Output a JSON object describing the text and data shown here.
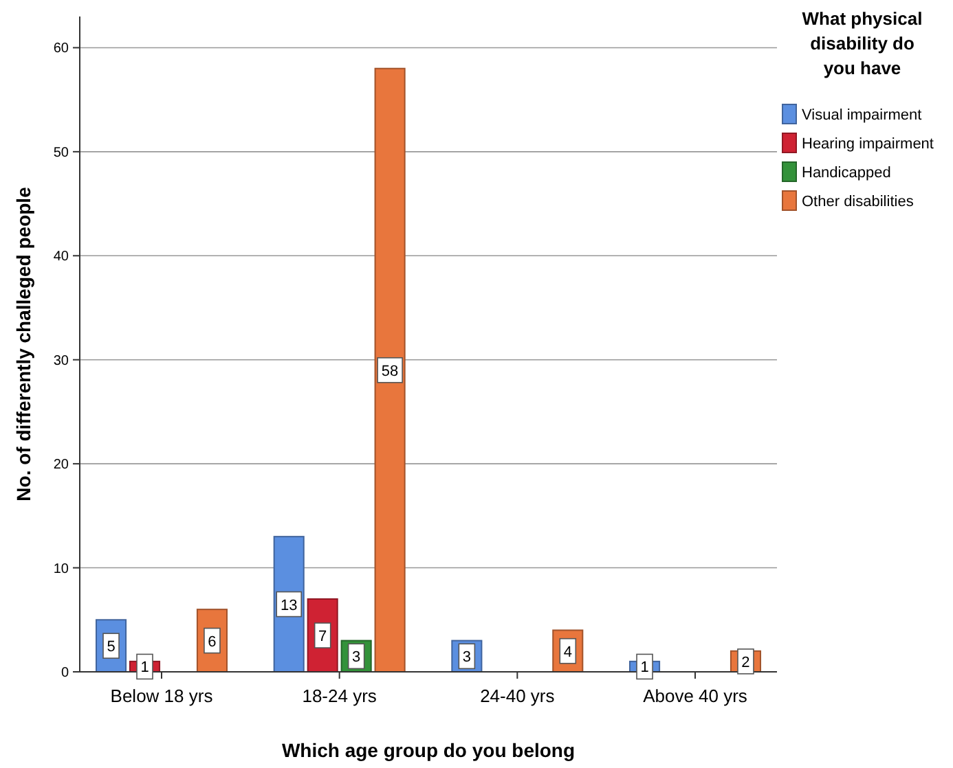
{
  "chart_data": {
    "type": "bar",
    "xlabel": "Which age group do you belong",
    "ylabel": "No. of differently challeged people",
    "legend_title": "What physical disability do you have",
    "categories": [
      "Below 18 yrs",
      "18-24 yrs",
      "24-40 yrs",
      "Above 40 yrs"
    ],
    "series": [
      {
        "name": "Visual impairment",
        "color": "#5b8fe0",
        "values": [
          5,
          13,
          3,
          1
        ]
      },
      {
        "name": "Hearing impairment",
        "color": "#cf2233",
        "values": [
          1,
          7,
          null,
          null
        ]
      },
      {
        "name": "Handicapped",
        "color": "#33923a",
        "values": [
          null,
          3,
          null,
          null
        ]
      },
      {
        "name": "Other disabilities",
        "color": "#e8763d",
        "values": [
          6,
          58,
          4,
          2
        ]
      }
    ],
    "ylim": [
      0,
      63
    ],
    "yticks": [
      0,
      10,
      20,
      30,
      40,
      50,
      60
    ],
    "grid": "y",
    "legend": "top right",
    "data_labels": true
  }
}
